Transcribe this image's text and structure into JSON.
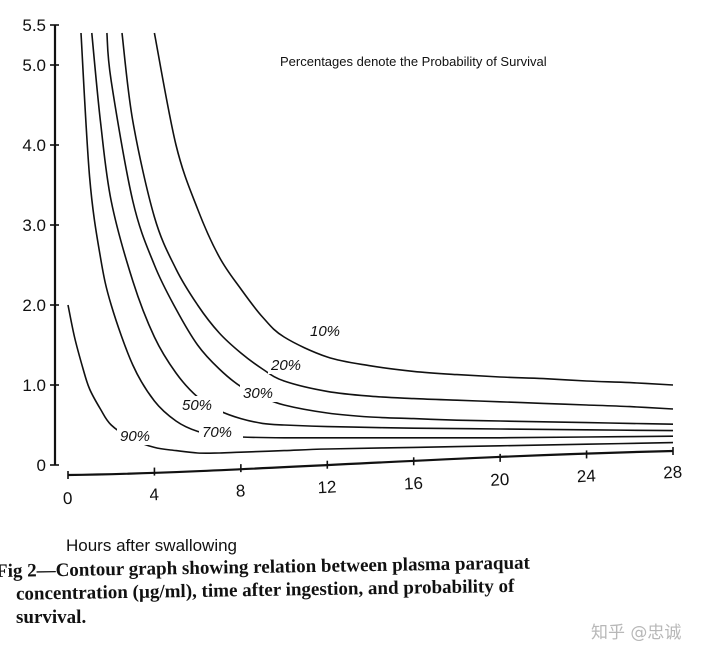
{
  "chart_data": {
    "type": "line",
    "note": "Percentages denote the Probability of Survival",
    "xlabel": "Hours after swallowing",
    "ylabel": "",
    "xlim": [
      0,
      28
    ],
    "ylim": [
      0,
      5.5
    ],
    "x_ticks": [
      "0",
      "4",
      "8",
      "12",
      "16",
      "20",
      "24",
      "28"
    ],
    "y_ticks": [
      "0",
      "1.0",
      "2.0",
      "3.0",
      "4.0",
      "5.0",
      "5.5"
    ],
    "series": [
      {
        "name": "10%",
        "x": [
          4,
          5,
          6,
          7,
          8,
          9,
          10,
          12,
          14,
          16,
          18,
          20,
          22,
          24,
          26,
          28
        ],
        "y": [
          5.4,
          4.0,
          3.2,
          2.6,
          2.2,
          1.85,
          1.6,
          1.35,
          1.24,
          1.17,
          1.13,
          1.1,
          1.08,
          1.05,
          1.03,
          1.0
        ]
      },
      {
        "name": "20%",
        "x": [
          2.5,
          3,
          4,
          5,
          6,
          7,
          8,
          9,
          10,
          12,
          14,
          16,
          18,
          20,
          22,
          24,
          26,
          28
        ],
        "y": [
          5.4,
          4.3,
          3.1,
          2.45,
          2.0,
          1.65,
          1.4,
          1.2,
          1.05,
          0.92,
          0.86,
          0.83,
          0.81,
          0.79,
          0.77,
          0.75,
          0.73,
          0.7
        ]
      },
      {
        "name": "30%",
        "x": [
          1.8,
          2,
          3,
          4,
          5,
          6,
          7,
          8,
          9,
          10,
          12,
          14,
          16,
          18,
          20,
          22,
          24,
          26,
          28
        ],
        "y": [
          5.4,
          4.8,
          3.3,
          2.5,
          1.95,
          1.5,
          1.2,
          0.98,
          0.85,
          0.75,
          0.65,
          0.6,
          0.58,
          0.56,
          0.55,
          0.54,
          0.53,
          0.52,
          0.51
        ]
      },
      {
        "name": "50%",
        "x": [
          1.1,
          1.5,
          2,
          3,
          4,
          5,
          6,
          7,
          8,
          9,
          10,
          12,
          14,
          16,
          20,
          24,
          28
        ],
        "y": [
          5.4,
          4.3,
          3.3,
          2.3,
          1.6,
          1.15,
          0.85,
          0.68,
          0.58,
          0.52,
          0.5,
          0.48,
          0.47,
          0.46,
          0.45,
          0.44,
          0.43
        ]
      },
      {
        "name": "70%",
        "x": [
          0.6,
          1,
          1.5,
          2,
          3,
          4,
          5,
          6,
          7,
          8,
          10,
          12,
          14,
          16,
          20,
          24,
          28
        ],
        "y": [
          5.4,
          3.6,
          2.6,
          2.0,
          1.25,
          0.8,
          0.55,
          0.42,
          0.37,
          0.35,
          0.34,
          0.34,
          0.34,
          0.34,
          0.34,
          0.35,
          0.36
        ]
      },
      {
        "name": "90%",
        "x": [
          0,
          0.3,
          0.7,
          1,
          1.5,
          2,
          3,
          4,
          5,
          6,
          7,
          8,
          10,
          12,
          16,
          20,
          24,
          28
        ],
        "y": [
          2.0,
          1.6,
          1.2,
          0.95,
          0.7,
          0.5,
          0.32,
          0.22,
          0.18,
          0.15,
          0.15,
          0.16,
          0.18,
          0.2,
          0.22,
          0.24,
          0.26,
          0.28
        ]
      }
    ],
    "label_text": [
      "10%",
      "20%",
      "30%",
      "50%",
      "70%",
      "90%"
    ]
  },
  "caption": {
    "line1": "Fig 2—Contour graph showing relation between plasma paraquat",
    "line2": "concentration (µg/ml), time after ingestion, and probability of",
    "line3": "survival."
  },
  "watermark": "知乎 @忠诚"
}
